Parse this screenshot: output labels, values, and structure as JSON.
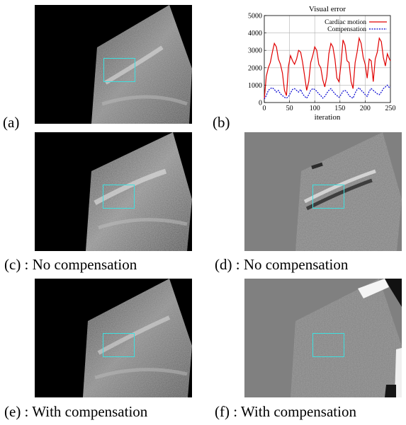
{
  "panels": [
    {
      "id": "a",
      "label": "(a)"
    },
    {
      "id": "b",
      "label": "(b)"
    },
    {
      "id": "c",
      "label": "(c) : No compensation"
    },
    {
      "id": "d",
      "label": "(d) : No compensation"
    },
    {
      "id": "e",
      "label": "(e) : With compensation"
    },
    {
      "id": "f",
      "label": "(f) : With compensation"
    }
  ],
  "colors": {
    "roi": "#3ee0e0",
    "series_red": "#e00000",
    "series_blue": "#0000d0",
    "diff_background": "#808080"
  },
  "chart_data": {
    "type": "line",
    "title": "Visual error",
    "xlabel": "iteration",
    "ylabel": "",
    "xlim": [
      0,
      250
    ],
    "ylim": [
      0,
      5000
    ],
    "xticks": [
      0,
      50,
      100,
      150,
      200,
      250
    ],
    "yticks": [
      0,
      1000,
      2000,
      3000,
      4000,
      5000
    ],
    "grid": true,
    "legend_position": "top-right",
    "series": [
      {
        "name": "Cardiac motion",
        "color": "#e00000",
        "x": [
          0,
          4,
          8,
          12,
          16,
          20,
          24,
          28,
          32,
          36,
          40,
          44,
          48,
          52,
          56,
          60,
          64,
          68,
          72,
          76,
          80,
          84,
          88,
          92,
          96,
          100,
          104,
          108,
          112,
          116,
          120,
          124,
          128,
          132,
          136,
          140,
          144,
          148,
          152,
          156,
          160,
          164,
          168,
          172,
          176,
          180,
          184,
          188,
          192,
          196,
          200,
          204,
          208,
          212,
          216,
          220,
          224,
          228,
          232,
          236,
          240,
          244,
          248,
          250
        ],
        "y": [
          200,
          1500,
          2000,
          2300,
          2900,
          3400,
          3200,
          2500,
          2200,
          1700,
          700,
          400,
          2100,
          2700,
          2400,
          2200,
          2500,
          3000,
          2900,
          2300,
          1500,
          700,
          1200,
          2300,
          2700,
          3200,
          3000,
          2200,
          2000,
          1300,
          900,
          1500,
          2800,
          3400,
          3200,
          2500,
          1400,
          1200,
          2200,
          3600,
          3300,
          2400,
          2300,
          1200,
          800,
          2300,
          2900,
          3700,
          3400,
          2600,
          2200,
          1400,
          2500,
          2400,
          1200,
          2500,
          2900,
          3700,
          3500,
          2600,
          2100,
          2800,
          2500,
          2400
        ]
      },
      {
        "name": "Compensation",
        "color": "#0000d0",
        "x": [
          0,
          4,
          8,
          12,
          16,
          20,
          24,
          28,
          32,
          36,
          40,
          44,
          48,
          52,
          56,
          60,
          64,
          68,
          72,
          76,
          80,
          84,
          88,
          92,
          96,
          100,
          104,
          108,
          112,
          116,
          120,
          124,
          128,
          132,
          136,
          140,
          144,
          148,
          152,
          156,
          160,
          164,
          168,
          172,
          176,
          180,
          184,
          188,
          192,
          196,
          200,
          204,
          208,
          212,
          216,
          220,
          224,
          228,
          232,
          236,
          240,
          244,
          248,
          250
        ],
        "y": [
          200,
          400,
          700,
          800,
          850,
          750,
          600,
          700,
          500,
          400,
          300,
          250,
          350,
          550,
          750,
          800,
          700,
          600,
          750,
          500,
          350,
          250,
          450,
          700,
          800,
          750,
          650,
          500,
          400,
          250,
          350,
          550,
          700,
          800,
          650,
          500,
          400,
          300,
          450,
          650,
          700,
          600,
          400,
          300,
          250,
          550,
          750,
          850,
          700,
          600,
          450,
          350,
          650,
          800,
          700,
          600,
          500,
          450,
          600,
          800,
          900,
          1000,
          850,
          900
        ]
      }
    ]
  }
}
